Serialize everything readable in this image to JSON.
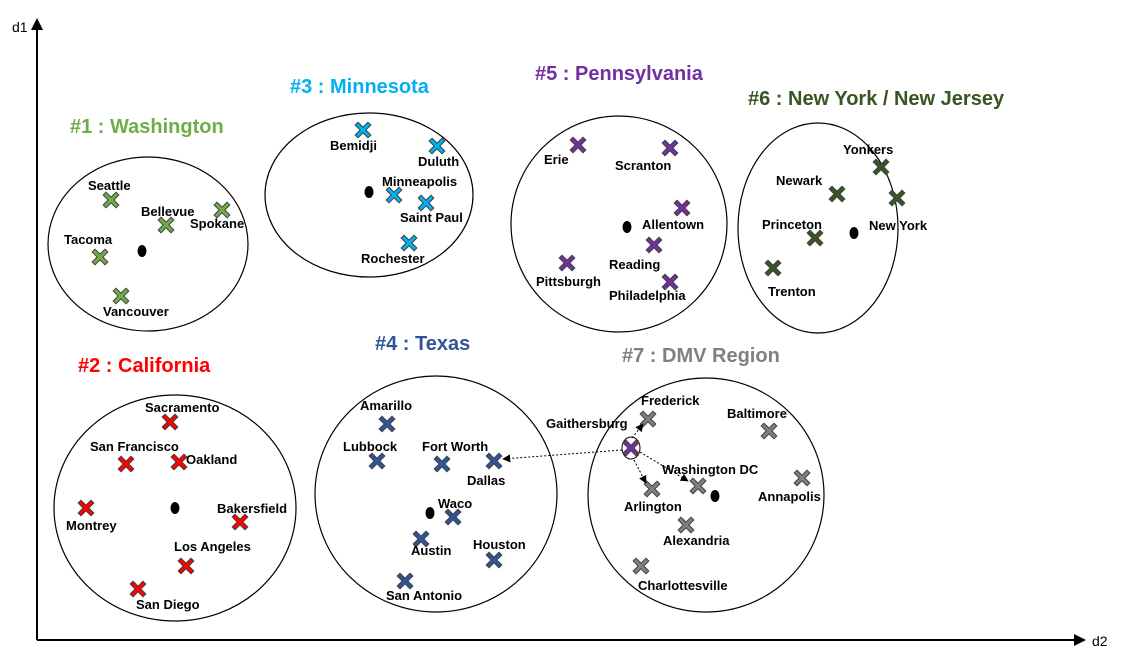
{
  "axes": {
    "y_label": "d1",
    "x_label": "d2"
  },
  "colors": {
    "washington": "#70AD47",
    "california": "#FF0000",
    "minnesota": "#00B0F0",
    "texas": "#2F5597",
    "pennsylvania": "#7030A0",
    "new_york": "#375623",
    "dmv": "#808080",
    "highlight": "#FF0000"
  },
  "clusters": [
    {
      "key": "washington",
      "title": "#1 : Washington",
      "color": "#70AD47",
      "cities": [
        {
          "name": "Seattle"
        },
        {
          "name": "Bellevue"
        },
        {
          "name": "Spokane"
        },
        {
          "name": "Tacoma"
        },
        {
          "name": "Vancouver"
        }
      ]
    },
    {
      "key": "california",
      "title": "#2 : California",
      "color": "#FF0000",
      "cities": [
        {
          "name": "Sacramento"
        },
        {
          "name": "San Francisco"
        },
        {
          "name": "Oakland"
        },
        {
          "name": "Montrey"
        },
        {
          "name": "Bakersfield"
        },
        {
          "name": "Los Angeles"
        },
        {
          "name": "San Diego"
        }
      ]
    },
    {
      "key": "minnesota",
      "title": "#3 : Minnesota",
      "color": "#00B0F0",
      "cities": [
        {
          "name": "Bemidji"
        },
        {
          "name": "Duluth"
        },
        {
          "name": "Minneapolis"
        },
        {
          "name": "Saint Paul"
        },
        {
          "name": "Rochester"
        }
      ]
    },
    {
      "key": "texas",
      "title": "#4 : Texas",
      "color": "#2F5597",
      "cities": [
        {
          "name": "Amarillo"
        },
        {
          "name": "Lubbock"
        },
        {
          "name": "Fort Worth"
        },
        {
          "name": "Dallas"
        },
        {
          "name": "Waco"
        },
        {
          "name": "Austin"
        },
        {
          "name": "Houston"
        },
        {
          "name": "San Antonio"
        }
      ]
    },
    {
      "key": "pennsylvania",
      "title": "#5 : Pennsylvania",
      "color": "#7030A0",
      "cities": [
        {
          "name": "Erie"
        },
        {
          "name": "Scranton"
        },
        {
          "name": "Allentown"
        },
        {
          "name": "Reading"
        },
        {
          "name": "Pittsburgh"
        },
        {
          "name": "Philadelphia"
        }
      ]
    },
    {
      "key": "new_york",
      "title": "#6 : New York / New Jersey",
      "color": "#375623",
      "cities": [
        {
          "name": "Yonkers"
        },
        {
          "name": "Newark"
        },
        {
          "name": "New York"
        },
        {
          "name": "Princeton"
        },
        {
          "name": "Trenton"
        }
      ]
    },
    {
      "key": "dmv",
      "title": "#7 : DMV Region",
      "color": "#808080",
      "cities": [
        {
          "name": "Frederick"
        },
        {
          "name": "Baltimore"
        },
        {
          "name": "Washington DC"
        },
        {
          "name": "Annapolis"
        },
        {
          "name": "Arlington"
        },
        {
          "name": "Alexandria"
        },
        {
          "name": "Charlottesville"
        }
      ]
    }
  ],
  "highlight": {
    "name": "Gaithersburg",
    "color": "#7030A0",
    "label_color": "#FF0000"
  }
}
